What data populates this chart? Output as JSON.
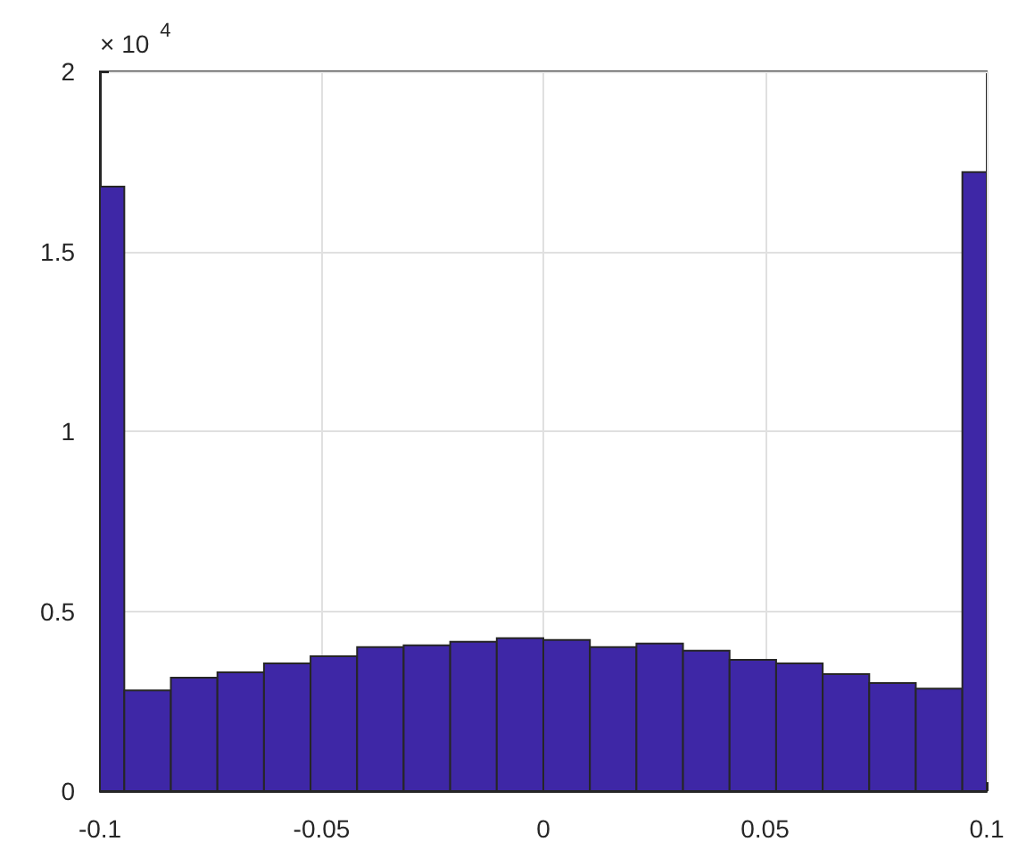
{
  "chart_data": {
    "type": "histogram",
    "bins": [
      -0.1,
      -0.0945,
      -0.084,
      -0.0735,
      -0.063,
      -0.0525,
      -0.042,
      -0.0315,
      -0.021,
      -0.0105,
      0,
      0.0105,
      0.021,
      0.0315,
      0.042,
      0.0525,
      0.063,
      0.0735,
      0.084,
      0.0945,
      0.1
    ],
    "values": [
      1.68,
      0.28,
      0.315,
      0.33,
      0.355,
      0.375,
      0.4,
      0.405,
      0.415,
      0.425,
      0.42,
      0.4,
      0.41,
      0.39,
      0.365,
      0.355,
      0.325,
      0.3,
      0.285,
      1.72
    ],
    "color": "#3e27a6",
    "xlim": [
      -0.1,
      0.1
    ],
    "xticks": [
      -0.1,
      -0.05,
      0,
      0.05,
      0.1
    ],
    "ylim": [
      0,
      2
    ],
    "yticks": [
      0,
      0.5,
      1,
      1.5,
      2
    ],
    "annotations": [
      "× 10$^{4}$"
    ],
    "grid": true
  }
}
